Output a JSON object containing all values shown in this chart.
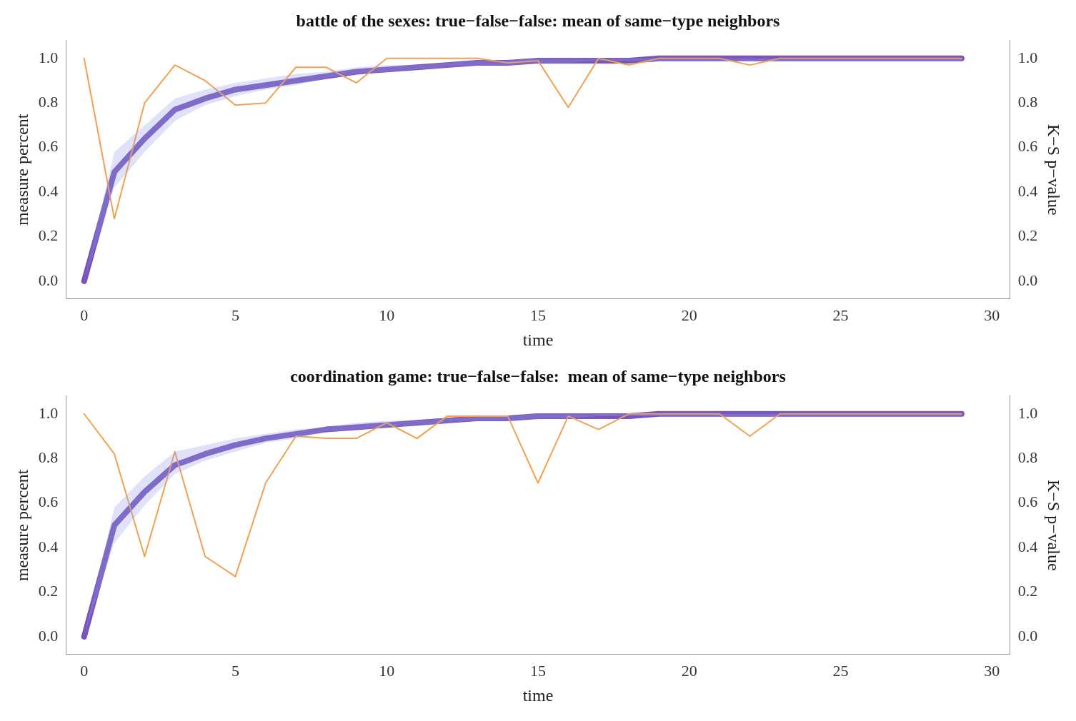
{
  "chart_data": [
    {
      "type": "line",
      "title": "battle of the sexes: true−false−false: mean of same−type neighbors",
      "xlabel": "time",
      "ylabel": "measure percent",
      "y2label": "K−S p−value",
      "x": [
        0,
        1,
        2,
        3,
        4,
        5,
        6,
        7,
        8,
        9,
        10,
        11,
        12,
        13,
        14,
        15,
        16,
        17,
        18,
        19,
        20,
        21,
        22,
        23,
        24,
        25,
        26,
        27,
        28,
        29
      ],
      "xlim": [
        -0.6,
        30.6
      ],
      "xticks": [
        0,
        5,
        10,
        15,
        20,
        25,
        30
      ],
      "ylim": [
        -0.08,
        1.08
      ],
      "yticks": [
        {
          "value": 0,
          "label": "0.0"
        },
        {
          "value": 0.2,
          "label": "0.2"
        },
        {
          "value": 0.4,
          "label": "0.4"
        },
        {
          "value": 0.6,
          "label": "0.6"
        },
        {
          "value": 0.8,
          "label": "0.8"
        },
        {
          "value": 1,
          "label": "1.0"
        }
      ],
      "y2lim": [
        -0.08,
        1.08
      ],
      "y2ticks": [
        {
          "value": 0,
          "label": "0.0"
        },
        {
          "value": 0.2,
          "label": "0.2"
        },
        {
          "value": 0.4,
          "label": "0.4"
        },
        {
          "value": 0.6,
          "label": "0.6"
        },
        {
          "value": 0.8,
          "label": "0.8"
        },
        {
          "value": 1,
          "label": "1.0"
        }
      ],
      "grid": false,
      "legend": false,
      "marker": "none",
      "line_style": "solid",
      "series": [
        {
          "color": "#7755bb",
          "axis": "y",
          "values": [
            0,
            0.49,
            0.64,
            0.77,
            0.82,
            0.86,
            0.88,
            0.9,
            0.92,
            0.94,
            0.95,
            0.96,
            0.97,
            0.98,
            0.98,
            0.99,
            0.99,
            0.99,
            0.99,
            1,
            1,
            1,
            1,
            1,
            1,
            1,
            1,
            1,
            1,
            1
          ],
          "lower": [
            0,
            0.42,
            0.58,
            0.72,
            0.79,
            0.83,
            0.86,
            0.88,
            0.91,
            0.93,
            0.94,
            0.95,
            0.96,
            0.97,
            0.97,
            0.98,
            0.98,
            0.99,
            0.99,
            0.99,
            0.99,
            0.99,
            0.99,
            0.99,
            0.99,
            0.99,
            0.99,
            0.99,
            0.99,
            0.99
          ],
          "upper": [
            0,
            0.58,
            0.7,
            0.82,
            0.86,
            0.89,
            0.91,
            0.93,
            0.94,
            0.96,
            0.97,
            0.97,
            0.98,
            0.99,
            0.99,
            1,
            1,
            1,
            1,
            1,
            1,
            1,
            1,
            1,
            1,
            1,
            1,
            1,
            1,
            1
          ]
        },
        {
          "color": "#f5a050",
          "axis": "y2",
          "values": [
            1,
            0.28,
            0.8,
            0.97,
            0.9,
            0.79,
            0.8,
            0.96,
            0.96,
            0.89,
            1,
            1,
            1,
            1,
            0.98,
            0.99,
            0.78,
            1,
            0.97,
            1,
            1,
            1,
            0.97,
            1,
            1,
            1,
            1,
            1,
            1,
            1
          ]
        }
      ]
    },
    {
      "type": "line",
      "title": "coordination game: true−false−false:  mean of same−type neighbors",
      "xlabel": "time",
      "ylabel": "measure percent",
      "y2label": "K−S p−value",
      "x": [
        0,
        1,
        2,
        3,
        4,
        5,
        6,
        7,
        8,
        9,
        10,
        11,
        12,
        13,
        14,
        15,
        16,
        17,
        18,
        19,
        20,
        21,
        22,
        23,
        24,
        25,
        26,
        27,
        28,
        29
      ],
      "xlim": [
        -0.6,
        30.6
      ],
      "xticks": [
        0,
        5,
        10,
        15,
        20,
        25,
        30
      ],
      "ylim": [
        -0.08,
        1.08
      ],
      "yticks": [
        {
          "value": 0,
          "label": "0.0"
        },
        {
          "value": 0.2,
          "label": "0.2"
        },
        {
          "value": 0.4,
          "label": "0.4"
        },
        {
          "value": 0.6,
          "label": "0.6"
        },
        {
          "value": 0.8,
          "label": "0.8"
        },
        {
          "value": 1,
          "label": "1.0"
        }
      ],
      "y2lim": [
        -0.08,
        1.08
      ],
      "y2ticks": [
        {
          "value": 0,
          "label": "0.0"
        },
        {
          "value": 0.2,
          "label": "0.2"
        },
        {
          "value": 0.4,
          "label": "0.4"
        },
        {
          "value": 0.6,
          "label": "0.6"
        },
        {
          "value": 0.8,
          "label": "0.8"
        },
        {
          "value": 1,
          "label": "1.0"
        }
      ],
      "grid": false,
      "legend": false,
      "marker": "none",
      "line_style": "solid",
      "series": [
        {
          "color": "#7755bb",
          "axis": "y",
          "values": [
            0,
            0.5,
            0.65,
            0.77,
            0.82,
            0.86,
            0.89,
            0.91,
            0.93,
            0.94,
            0.95,
            0.96,
            0.97,
            0.98,
            0.98,
            0.99,
            0.99,
            0.99,
            0.99,
            1,
            1,
            1,
            1,
            1,
            1,
            1,
            1,
            1,
            1,
            1
          ],
          "lower": [
            0,
            0.42,
            0.59,
            0.73,
            0.79,
            0.83,
            0.87,
            0.89,
            0.92,
            0.93,
            0.94,
            0.95,
            0.96,
            0.97,
            0.97,
            0.98,
            0.98,
            0.99,
            0.99,
            0.99,
            0.99,
            0.99,
            0.99,
            0.99,
            0.99,
            0.99,
            0.99,
            0.99,
            0.99,
            0.99
          ],
          "upper": [
            0,
            0.58,
            0.72,
            0.83,
            0.86,
            0.89,
            0.91,
            0.93,
            0.94,
            0.96,
            0.97,
            0.97,
            0.98,
            0.99,
            0.99,
            1,
            1,
            1,
            1,
            1,
            1,
            1,
            1,
            1,
            1,
            1,
            1,
            1,
            1,
            1
          ]
        },
        {
          "color": "#f5a050",
          "axis": "y2",
          "values": [
            1,
            0.82,
            0.36,
            0.83,
            0.36,
            0.27,
            0.69,
            0.9,
            0.89,
            0.89,
            0.96,
            0.89,
            0.99,
            0.99,
            0.99,
            0.69,
            0.99,
            0.93,
            1,
            1,
            1,
            1,
            0.9,
            1,
            1,
            1,
            1,
            1,
            1,
            1
          ]
        }
      ]
    }
  ]
}
